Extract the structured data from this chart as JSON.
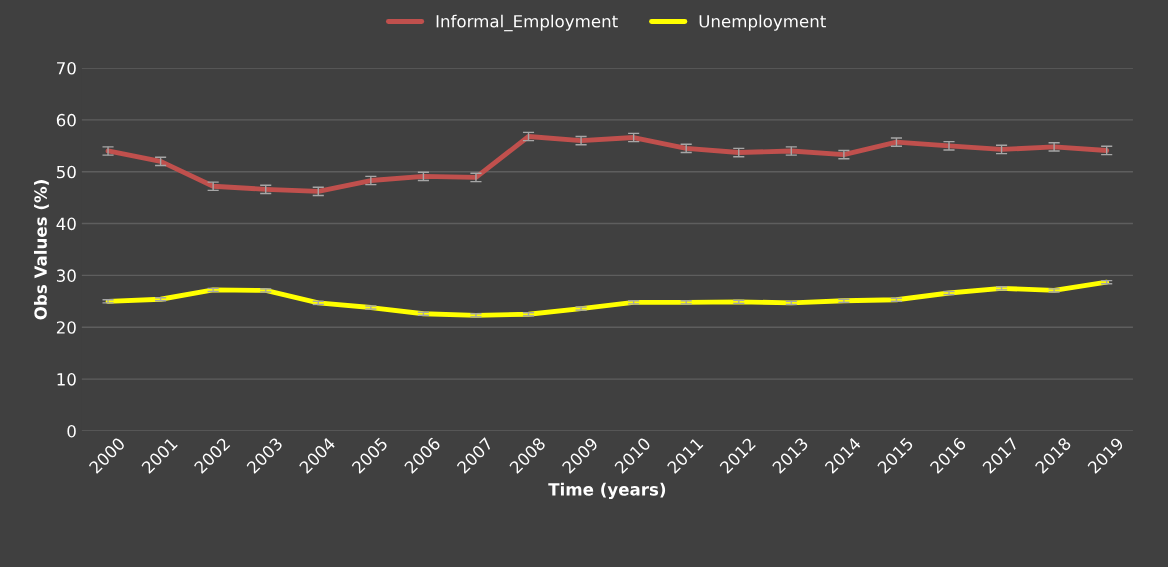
{
  "chart_data": {
    "type": "line",
    "xlabel": "Time (years)",
    "ylabel": "Obs Values (%)",
    "categories": [
      "2000",
      "2001",
      "2002",
      "2003",
      "2004",
      "2005",
      "2006",
      "2007",
      "2008",
      "2009",
      "2010",
      "2011",
      "2012",
      "2013",
      "2014",
      "2015",
      "2016",
      "2017",
      "2018",
      "2019"
    ],
    "series": [
      {
        "name": "Informal_Employment",
        "color": "#c0504d",
        "values": [
          54.0,
          52.0,
          47.2,
          46.6,
          46.2,
          48.3,
          49.1,
          48.9,
          56.8,
          56.0,
          56.6,
          54.5,
          53.7,
          54.0,
          53.3,
          55.7,
          55.0,
          54.3,
          54.8,
          54.1
        ],
        "errors": [
          0.8,
          0.8,
          0.8,
          0.8,
          0.8,
          0.8,
          0.8,
          0.8,
          0.8,
          0.8,
          0.8,
          0.8,
          0.8,
          0.8,
          0.8,
          0.8,
          0.8,
          0.8,
          0.8,
          0.8
        ]
      },
      {
        "name": "Unemployment",
        "color": "#ffff00",
        "values": [
          25.0,
          25.4,
          27.2,
          27.1,
          24.7,
          23.8,
          22.6,
          22.3,
          22.5,
          23.6,
          24.8,
          24.8,
          24.9,
          24.7,
          25.1,
          25.3,
          26.6,
          27.5,
          27.1,
          28.7
        ],
        "errors": [
          0.3,
          0.3,
          0.3,
          0.3,
          0.3,
          0.3,
          0.3,
          0.3,
          0.3,
          0.3,
          0.3,
          0.3,
          0.3,
          0.3,
          0.3,
          0.3,
          0.3,
          0.3,
          0.3,
          0.3
        ]
      }
    ],
    "ylim": [
      0,
      70
    ],
    "yticks": [
      0,
      10,
      20,
      30,
      40,
      50,
      60,
      70
    ],
    "grid": "y",
    "legend": "top",
    "marker": "none",
    "line_style": "solid"
  }
}
